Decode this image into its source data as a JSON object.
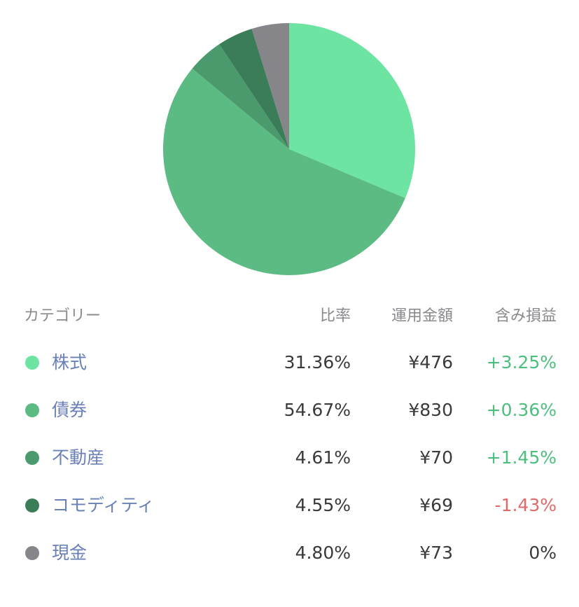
{
  "chart_data": {
    "type": "pie",
    "colors": [
      "#6ee4a2",
      "#5bbb83",
      "#4a9a6e",
      "#3a7d58",
      "#85858a"
    ],
    "series": [
      {
        "name": "株式",
        "value": 31.36
      },
      {
        "name": "債券",
        "value": 54.67
      },
      {
        "name": "不動産",
        "value": 4.61
      },
      {
        "name": "コモディティ",
        "value": 4.55
      },
      {
        "name": "現金",
        "value": 4.8
      }
    ]
  },
  "table": {
    "headers": {
      "category": "カテゴリー",
      "ratio": "比率",
      "amount": "運用金額",
      "pl": "含み損益"
    },
    "rows": [
      {
        "name": "株式",
        "color": "#6ee4a2",
        "ratio": "31.36%",
        "amount": "¥476",
        "pl": "+3.25%",
        "pl_sign": "pos"
      },
      {
        "name": "債券",
        "color": "#5bbb83",
        "ratio": "54.67%",
        "amount": "¥830",
        "pl": "+0.36%",
        "pl_sign": "pos"
      },
      {
        "name": "不動産",
        "color": "#4a9a6e",
        "ratio": "4.61%",
        "amount": "¥70",
        "pl": "+1.45%",
        "pl_sign": "pos"
      },
      {
        "name": "コモディティ",
        "color": "#3a7d58",
        "ratio": "4.55%",
        "amount": "¥69",
        "pl": "-1.43%",
        "pl_sign": "neg"
      },
      {
        "name": "現金",
        "color": "#85858a",
        "ratio": "4.80%",
        "amount": "¥73",
        "pl": "0%",
        "pl_sign": "zero"
      }
    ]
  }
}
